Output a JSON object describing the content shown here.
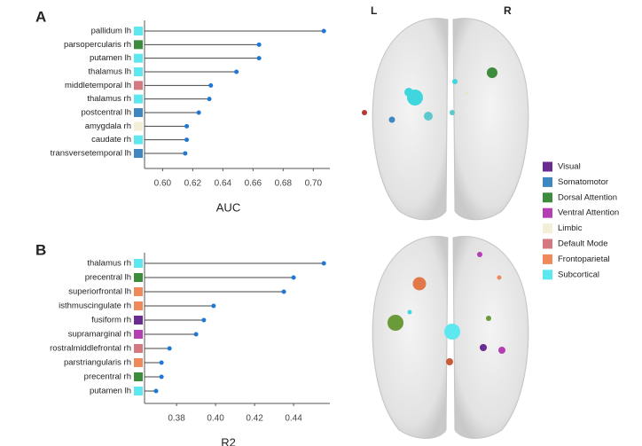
{
  "chart_data": [
    {
      "type": "lollipop",
      "panel": "A",
      "xlabel": "AUC",
      "categories": [
        "pallidum lh",
        "parsopercularis rh",
        "putamen lh",
        "thalamus lh",
        "middletemporal lh",
        "thalamus rh",
        "postcentral lh",
        "amygdala rh",
        "caudate rh",
        "transversetemporal lh"
      ],
      "values": [
        0.707,
        0.664,
        0.664,
        0.649,
        0.632,
        0.631,
        0.624,
        0.616,
        0.616,
        0.615
      ],
      "colors": [
        "#5ce8ee",
        "#3d8b3d",
        "#5ce8ee",
        "#5ce8ee",
        "#d4797f",
        "#5ce8ee",
        "#3f87c0",
        "#f2efd6",
        "#5ce8ee",
        "#3f87c0"
      ],
      "color": "#1f78d6",
      "xlim": [
        0.588,
        0.711
      ],
      "xticks": [
        {
          "value": 0.6,
          "label": "0.60"
        },
        0.62,
        0.64,
        0.66,
        0.68,
        {
          "value": 0.7,
          "label": "0.70"
        }
      ]
    },
    {
      "type": "lollipop",
      "panel": "B",
      "xlabel": "R2",
      "categories": [
        "thalamus rh",
        "precentral lh",
        "superiorfrontal lh",
        "isthmuscingulate rh",
        "fusiform rh",
        "supramarginal rh",
        "rostralmiddlefrontal rh",
        "parstriangularis rh",
        "precentral rh",
        "putamen lh"
      ],
      "values": [
        0.4555,
        0.44,
        0.435,
        0.399,
        0.394,
        0.39,
        0.3764,
        0.3723,
        0.3723,
        0.3695
      ],
      "colors": [
        "#5ce8ee",
        "#3d8b3d",
        "#f0895a",
        "#f0895a",
        "#6a2c91",
        "#b43fb3",
        "#d4797f",
        "#f0895a",
        "#3d8b3d",
        "#5ce8ee"
      ],
      "color": "#1f78d6",
      "xlim": [
        0.3636,
        0.4586
      ],
      "xticks": [
        0.38,
        {
          "value": 0.4,
          "label": "0.40"
        },
        0.42,
        0.44
      ]
    }
  ],
  "legend": [
    {
      "name": "Visual",
      "color": "#6a2c91"
    },
    {
      "name": "Somatomotor",
      "color": "#3f87c0"
    },
    {
      "name": "Dorsal Attention",
      "color": "#3d8b3d"
    },
    {
      "name": "Ventral Attention",
      "color": "#b43fb3"
    },
    {
      "name": "Limbic",
      "color": "#f2efd6"
    },
    {
      "name": "Default Mode",
      "color": "#d4797f"
    },
    {
      "name": "Frontoparietal",
      "color": "#f0895a"
    },
    {
      "name": "Subcortical",
      "color": "#5ce8ee"
    }
  ],
  "hemisphere_labels": [
    "L",
    "R"
  ]
}
